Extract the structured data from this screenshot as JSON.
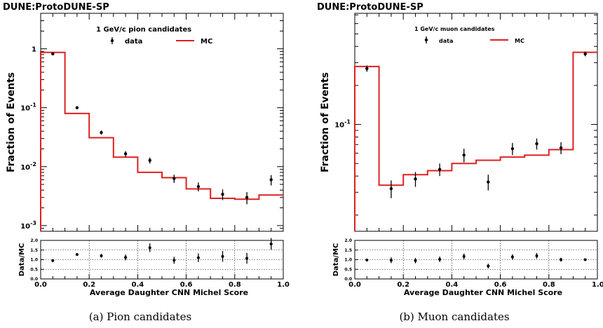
{
  "chart_data": [
    {
      "type": "line",
      "title": "DUNE:ProtoDUNE-SP",
      "annotation": "1 GeV/c pion candidates",
      "caption": "(a) Pion candidates",
      "xlabel": "Average Daughter CNN Michel Score",
      "ylabel": "Fraction of Events",
      "xlim": [
        0,
        1
      ],
      "ylog": true,
      "ylim": [
        0.0008,
        4.0
      ],
      "yticks": [
        0.001,
        0.01,
        0.1,
        1
      ],
      "yticklabels": [
        "10^-3",
        "10^-2",
        "10^-1",
        "1"
      ],
      "xticks": [
        0.0,
        0.2,
        0.4,
        0.6,
        0.8,
        1.0
      ],
      "xticklabels": [
        "0.0",
        "0.2",
        "0.4",
        "0.6",
        "0.8",
        "1.0"
      ],
      "legend": {
        "position": "top",
        "data_label": "data",
        "mc_label": "MC"
      },
      "bin_edges": [
        0.0,
        0.1,
        0.2,
        0.3,
        0.4,
        0.5,
        0.6,
        0.7,
        0.8,
        0.9,
        1.0
      ],
      "series": [
        {
          "name": "MC",
          "kind": "step",
          "color": "#e02020",
          "values": [
            0.87,
            0.08,
            0.031,
            0.0145,
            0.008,
            0.0065,
            0.0042,
            0.0029,
            0.0028,
            0.0033
          ]
        },
        {
          "name": "data",
          "kind": "points",
          "color": "#000000",
          "x": [
            0.05,
            0.15,
            0.25,
            0.35,
            0.45,
            0.55,
            0.65,
            0.75,
            0.85,
            0.95
          ],
          "values": [
            0.82,
            0.1,
            0.038,
            0.0165,
            0.0128,
            0.0063,
            0.0046,
            0.0034,
            0.003,
            0.006
          ],
          "err_up": [
            0.02,
            0.004,
            0.003,
            0.0018,
            0.0015,
            0.001,
            0.0008,
            0.0007,
            0.0007,
            0.0012
          ],
          "err_dn": [
            0.02,
            0.004,
            0.003,
            0.0018,
            0.0015,
            0.001,
            0.0008,
            0.0007,
            0.0007,
            0.0012
          ]
        }
      ],
      "ratio": {
        "ylabel": "Data/MC",
        "ylim": [
          0,
          2
        ],
        "yticks": [
          0,
          0.5,
          1,
          1.5,
          2
        ],
        "yticklabels": [
          "0.0",
          "0.5",
          "1.0",
          "1.5",
          "2.0"
        ],
        "values": [
          0.95,
          1.27,
          1.2,
          1.12,
          1.62,
          0.97,
          1.1,
          1.17,
          1.07,
          1.82
        ],
        "errors": [
          0.03,
          0.05,
          0.1,
          0.15,
          0.22,
          0.18,
          0.22,
          0.28,
          0.28,
          0.3
        ]
      }
    },
    {
      "type": "line",
      "title": "DUNE:ProtoDUNE-SP",
      "annotation": "1 GeV/c muon candidates",
      "caption": "(b) Muon candidates",
      "xlabel": "Average Daughter CNN Michel Score",
      "ylabel": "Fraction of Events",
      "xlim": [
        0,
        1
      ],
      "ylog": true,
      "ylim": [
        0.015,
        0.72
      ],
      "yticks": [
        0.1
      ],
      "yticklabels": [
        "10^-1"
      ],
      "xticks": [
        0.0,
        0.2,
        0.4,
        0.6,
        0.8,
        1.0
      ],
      "xticklabels": [
        "0.0",
        "0.2",
        "0.4",
        "0.6",
        "0.8",
        "1.0"
      ],
      "legend": {
        "position": "top",
        "data_label": "data",
        "mc_label": "MC"
      },
      "bin_edges": [
        0.0,
        0.1,
        0.2,
        0.3,
        0.4,
        0.5,
        0.6,
        0.7,
        0.8,
        0.9,
        1.0
      ],
      "series": [
        {
          "name": "MC",
          "kind": "step",
          "color": "#e02020",
          "values": [
            0.28,
            0.034,
            0.041,
            0.044,
            0.05,
            0.053,
            0.056,
            0.058,
            0.064,
            0.36
          ]
        },
        {
          "name": "data",
          "kind": "points",
          "color": "#000000",
          "x": [
            0.05,
            0.15,
            0.25,
            0.35,
            0.45,
            0.55,
            0.65,
            0.75,
            0.85,
            0.95
          ],
          "values": [
            0.27,
            0.032,
            0.038,
            0.045,
            0.058,
            0.036,
            0.065,
            0.071,
            0.066,
            0.35
          ],
          "err_up": [
            0.015,
            0.005,
            0.005,
            0.005,
            0.007,
            0.005,
            0.007,
            0.007,
            0.007,
            0.015
          ],
          "err_dn": [
            0.015,
            0.005,
            0.005,
            0.005,
            0.007,
            0.005,
            0.007,
            0.007,
            0.007,
            0.015
          ]
        }
      ],
      "ratio": {
        "ylabel": "Data/MC",
        "ylim": [
          0,
          2
        ],
        "yticks": [
          0,
          0.5,
          1,
          1.5,
          2
        ],
        "yticklabels": [
          "0.0",
          "0.5",
          "1.0",
          "1.5",
          "2.0"
        ],
        "values": [
          0.98,
          0.97,
          0.95,
          1.02,
          1.17,
          0.67,
          1.14,
          1.2,
          1.0,
          1.0
        ],
        "errors": [
          0.04,
          0.15,
          0.14,
          0.14,
          0.15,
          0.12,
          0.14,
          0.15,
          0.1,
          0.04
        ]
      }
    }
  ]
}
